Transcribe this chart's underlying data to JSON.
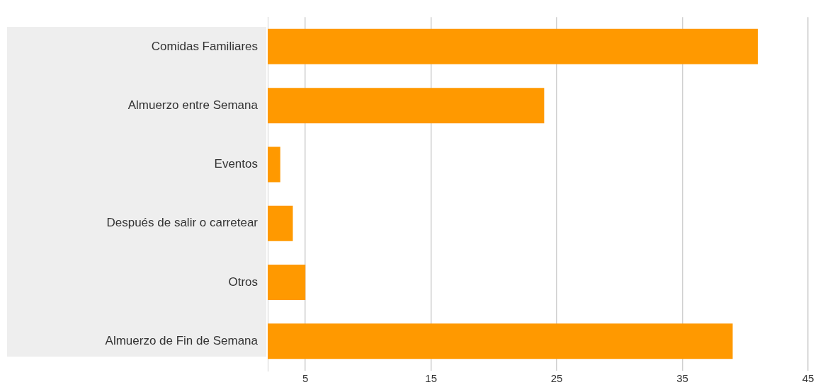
{
  "chart_data": {
    "type": "bar",
    "orientation": "horizontal",
    "categories": [
      "Comidas Familiares",
      "Almuerzo entre Semana",
      "Eventos",
      "Después de salir o carretear",
      "Otros",
      "Almuerzo de Fin de Semana"
    ],
    "values": [
      41,
      24,
      3,
      4,
      5,
      39
    ],
    "color": "#ff9900",
    "xlim": [
      2,
      45
    ],
    "xticks": [
      5,
      15,
      25,
      35,
      45
    ],
    "grid": "x",
    "legend": false
  }
}
